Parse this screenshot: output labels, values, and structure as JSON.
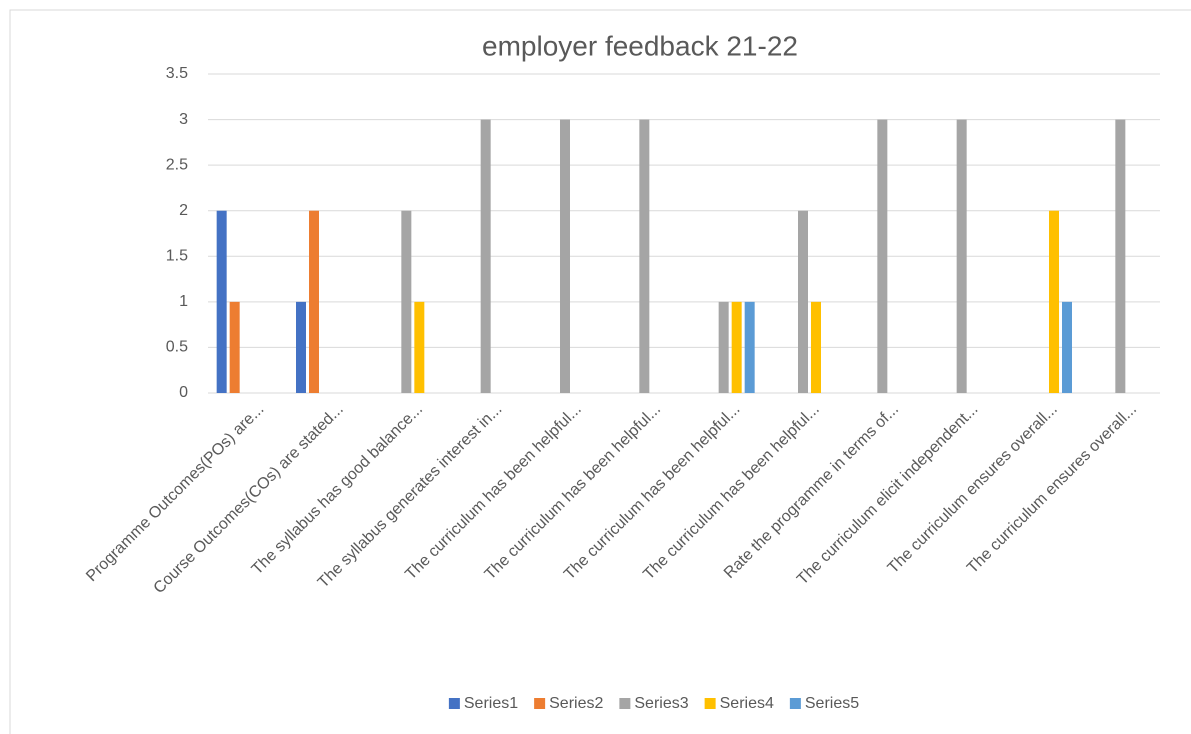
{
  "chart_data": {
    "type": "bar",
    "title": "employer feedback 21-22",
    "categories": [
      "Programme Outcomes(POs) are...",
      "Course Outcomes(COs) are stated...",
      "The syllabus has good balance...",
      "The syllabus generates interest in...",
      "The curriculum has been helpful...",
      "The curriculum has been helpful...",
      "The curriculum has been helpful...",
      "The curriculum has been helpful...",
      "Rate the programme in terms of...",
      "The curriculum elicit independent...",
      "The curriculum ensures overall...",
      "The curriculum ensures overall..."
    ],
    "series": [
      {
        "name": "Series1",
        "color": "#4472c4",
        "values": [
          2,
          1,
          null,
          null,
          null,
          null,
          null,
          null,
          null,
          null,
          null,
          null
        ]
      },
      {
        "name": "Series2",
        "color": "#ed7d31",
        "values": [
          1,
          2,
          null,
          null,
          null,
          null,
          null,
          null,
          null,
          null,
          null,
          null
        ]
      },
      {
        "name": "Series3",
        "color": "#a5a5a5",
        "values": [
          null,
          null,
          2,
          3,
          3,
          3,
          1,
          2,
          3,
          3,
          null,
          3
        ]
      },
      {
        "name": "Series4",
        "color": "#ffc000",
        "values": [
          null,
          null,
          1,
          null,
          null,
          null,
          1,
          1,
          null,
          null,
          2,
          null
        ]
      },
      {
        "name": "Series5",
        "color": "#5b9bd5",
        "values": [
          null,
          null,
          null,
          null,
          null,
          null,
          1,
          null,
          null,
          null,
          1,
          null
        ]
      }
    ],
    "ylim": [
      0,
      3.5
    ],
    "yticks": [
      0,
      0.5,
      1,
      1.5,
      2,
      2.5,
      3,
      3.5
    ],
    "grid": true,
    "legend": "bottom"
  }
}
